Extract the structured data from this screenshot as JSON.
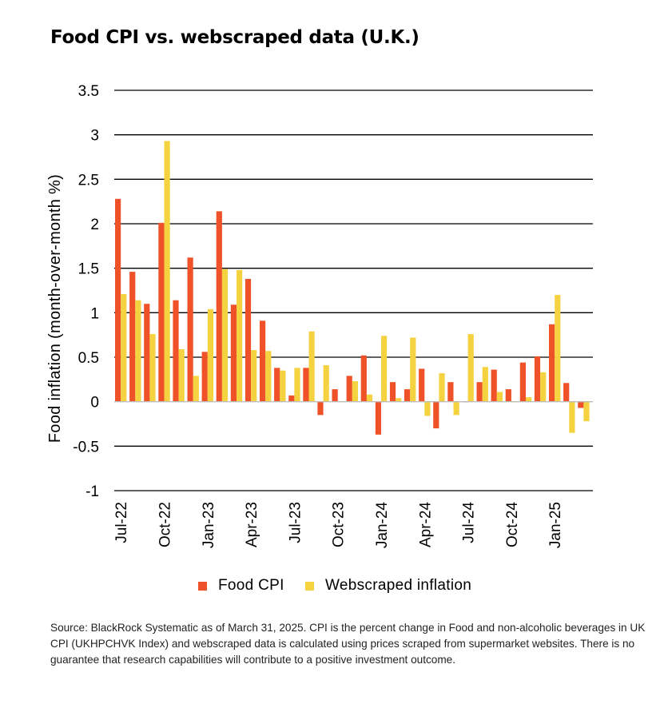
{
  "chart_data": {
    "type": "bar",
    "title": "Food CPI vs. webscraped data (U.K.)",
    "ylabel": "Food inflation (month-over-month %)",
    "xlabel": "",
    "ylim": [
      -1,
      3.5
    ],
    "yticks": [
      -1,
      -0.5,
      0,
      0.5,
      1,
      1.5,
      2,
      2.5,
      3,
      3.5
    ],
    "ytick_labels": [
      "-1",
      "-0.5",
      "0",
      "0.5",
      "1",
      "1.5",
      "2",
      "2.5",
      "3",
      "3.5"
    ],
    "grid": "horizontal",
    "categories": [
      "Jul-22",
      "Aug-22",
      "Sep-22",
      "Oct-22",
      "Nov-22",
      "Dec-22",
      "Jan-23",
      "Feb-23",
      "Mar-23",
      "Apr-23",
      "May-23",
      "Jun-23",
      "Jul-23",
      "Aug-23",
      "Sep-23",
      "Oct-23",
      "Nov-23",
      "Dec-23",
      "Jan-24",
      "Feb-24",
      "Mar-24",
      "Apr-24",
      "May-24",
      "Jun-24",
      "Jul-24",
      "Aug-24",
      "Sep-24",
      "Oct-24",
      "Nov-24",
      "Dec-24",
      "Jan-25",
      "Feb-25"
    ],
    "tick_labels": [
      {
        "index": 0,
        "label": "Jul-22"
      },
      {
        "index": 3,
        "label": "Oct-22"
      },
      {
        "index": 6,
        "label": "Jan-23"
      },
      {
        "index": 9,
        "label": "Apr-23"
      },
      {
        "index": 12,
        "label": "Jul-23"
      },
      {
        "index": 15,
        "label": "Oct-23"
      },
      {
        "index": 18,
        "label": "Jan-24"
      },
      {
        "index": 21,
        "label": "Apr-24"
      },
      {
        "index": 24,
        "label": "Jul-24"
      },
      {
        "index": 27,
        "label": "Oct-24"
      },
      {
        "index": 30,
        "label": "Jan-25"
      }
    ],
    "series": [
      {
        "name": "Food CPI",
        "color": "#ef5128",
        "values": [
          2.28,
          1.46,
          1.1,
          2.01,
          1.14,
          1.62,
          0.56,
          2.14,
          1.09,
          1.38,
          0.91,
          0.38,
          0.07,
          0.38,
          -0.15,
          0.14,
          0.29,
          0.52,
          -0.37,
          0.22,
          0.14,
          0.37,
          -0.3,
          0.22,
          0.0,
          0.22,
          0.36,
          0.14,
          0.44,
          0.51,
          0.87,
          0.21
        ]
      },
      {
        "name": "Webscraped inflation",
        "color": "#f5d240",
        "values": [
          1.21,
          1.14,
          0.76,
          2.93,
          0.59,
          0.29,
          1.04,
          1.49,
          1.48,
          0.58,
          0.57,
          0.35,
          0.38,
          0.79,
          0.41,
          0.0,
          0.23,
          0.08,
          0.74,
          0.04,
          0.72,
          -0.16,
          0.32,
          -0.15,
          0.76,
          0.39,
          0.11,
          0.0,
          0.05,
          0.33,
          1.2,
          -0.35
        ]
      }
    ],
    "extra_last_point": {
      "category": "Mar-25",
      "Food CPI": -0.07,
      "Webscraped inflation": -0.22
    },
    "legend": "bottom-center"
  },
  "source_note": "Source: BlackRock Systematic as of March 31, 2025. CPI is the percent change in Food and non-alcoholic beverages in UK CPI (UKHPCHVK Index) and webscraped data is calculated using prices scraped from supermarket websites. There is no guarantee that research capabilities will contribute to a positive investment outcome."
}
